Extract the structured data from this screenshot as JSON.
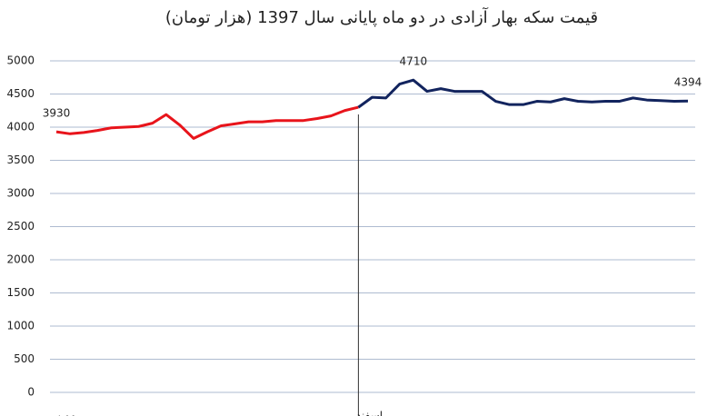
{
  "chart_data": {
    "type": "line",
    "title": "قیمت سکه بهار آزادی در دو ماه پایانی سال 1397 (هزار تومان)",
    "categories": [
      "بهمن",
      null,
      null,
      null,
      null,
      null,
      null,
      null,
      null,
      null,
      null,
      null,
      null,
      null,
      null,
      null,
      null,
      null,
      null,
      null,
      null,
      null,
      "اسفند",
      null,
      null,
      null,
      null,
      null,
      null,
      null,
      null,
      null,
      null,
      null,
      null,
      null,
      null,
      null,
      null,
      null,
      null,
      null,
      null,
      null,
      null,
      null,
      null
    ],
    "series": [
      {
        "color": "#e8141b",
        "values": [
          3930,
          3900,
          3920,
          3950,
          3990,
          4000,
          4010,
          4060,
          4190,
          4030,
          3830,
          3930,
          4020,
          4050,
          4080,
          4080,
          4100,
          4100,
          4100,
          4130,
          4170,
          4250,
          4300,
          null,
          null,
          null,
          null,
          null,
          null,
          null,
          null,
          null,
          null,
          null,
          null,
          null,
          null,
          null,
          null,
          null,
          null,
          null,
          null,
          null,
          null,
          null,
          null
        ],
        "value_labels": [
          "3930",
          null,
          null,
          null,
          null,
          null,
          null,
          null,
          null,
          null,
          null,
          null,
          null,
          null,
          null,
          null,
          null,
          null,
          null,
          null,
          null,
          null,
          null,
          null,
          null,
          null,
          null,
          null,
          null,
          null,
          null,
          null,
          null,
          null,
          null,
          null,
          null,
          null,
          null,
          null,
          null,
          null,
          null,
          null,
          null,
          null,
          null
        ]
      },
      {
        "color": "#12245e",
        "values": [
          null,
          null,
          null,
          null,
          null,
          null,
          null,
          null,
          null,
          null,
          null,
          null,
          null,
          null,
          null,
          null,
          null,
          null,
          null,
          null,
          null,
          null,
          4300,
          4450,
          4440,
          4650,
          4710,
          4540,
          4580,
          4540,
          4540,
          4540,
          4390,
          4340,
          4340,
          4390,
          4380,
          4430,
          4390,
          4380,
          4390,
          4390,
          4440,
          4410,
          4400,
          4390,
          4394
        ],
        "value_labels": [
          null,
          null,
          null,
          null,
          null,
          null,
          null,
          null,
          null,
          null,
          null,
          null,
          null,
          null,
          null,
          null,
          null,
          null,
          null,
          null,
          null,
          null,
          null,
          null,
          null,
          null,
          "4710",
          null,
          null,
          null,
          null,
          null,
          null,
          null,
          null,
          null,
          null,
          null,
          null,
          null,
          null,
          null,
          null,
          null,
          null,
          null,
          "4394"
        ]
      }
    ],
    "ylim": [
      0,
      5000
    ],
    "yticks": [
      0,
      500,
      1000,
      1500,
      2000,
      2500,
      3000,
      3500,
      4000,
      4500,
      5000
    ],
    "grid": true
  }
}
